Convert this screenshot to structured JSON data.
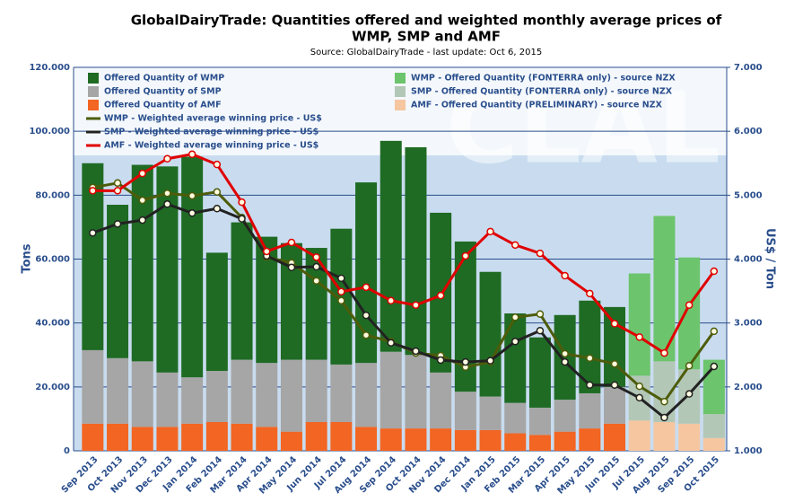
{
  "chart_data": {
    "type": "combo",
    "title": [
      "GlobalDairyTrade: Quantities offered and weighted monthly average prices of",
      "WMP, SMP and AMF"
    ],
    "subtitle": "Source: GlobalDairyTrade - last update: Oct 6, 2015",
    "watermark": "CLAL",
    "ylabel": "Tons",
    "y2label": "US$ / Ton",
    "categories": [
      "Sep 2013",
      "Oct 2013",
      "Nov 2013",
      "Dec 2013",
      "Jan 2014",
      "Feb 2014",
      "Mar 2014",
      "Apr 2014",
      "May 2014",
      "Jun 2014",
      "Jul 2014",
      "Aug 2014",
      "Sep 2014",
      "Oct 2014",
      "Nov 2014",
      "Dec 2014",
      "Jan 2015",
      "Feb 2015",
      "Mar 2015",
      "Apr 2015",
      "May 2015",
      "Jun 2015",
      "Jul 2015",
      "Aug 2015",
      "Sep 2015",
      "Oct 2015"
    ],
    "ylim": [
      0,
      120000
    ],
    "yticks": [
      0,
      {
        "value": 20000,
        "label": "20.000"
      },
      {
        "value": 40000,
        "label": "40.000"
      },
      {
        "value": 60000,
        "label": "60.000"
      },
      {
        "value": 80000,
        "label": "80.000"
      },
      {
        "value": 100000,
        "label": "100.000"
      },
      {
        "value": 120000,
        "label": "120.000"
      }
    ],
    "y2lim": [
      1,
      7
    ],
    "y2ticks": [
      {
        "value": 1,
        "label": "1.000"
      },
      {
        "value": 2,
        "label": "2.000"
      },
      {
        "value": 3,
        "label": "3.000"
      },
      {
        "value": 4,
        "label": "4.000"
      },
      {
        "value": 5,
        "label": "5.000"
      },
      {
        "value": 6,
        "label": "6.000"
      },
      {
        "value": 7,
        "label": "7.000"
      }
    ],
    "series": [
      {
        "name": "Offered Quantity of WMP",
        "type": "bar",
        "color": "#1f6b24",
        "values": [
          58500,
          48000,
          61500,
          64500,
          69000,
          37000,
          43000,
          39500,
          36500,
          35000,
          42500,
          56500,
          66000,
          65000,
          50000,
          47000,
          39000,
          28000,
          22000,
          26500,
          29000,
          25000,
          null,
          null,
          null,
          null
        ]
      },
      {
        "name": "Offered Quantity of SMP",
        "type": "bar",
        "color": "#a6a6a6",
        "values": [
          23000,
          20500,
          20500,
          17000,
          14500,
          16000,
          20000,
          20000,
          22500,
          19500,
          18000,
          20000,
          24000,
          23000,
          17500,
          12000,
          10500,
          9500,
          8500,
          10000,
          11000,
          11500,
          null,
          null,
          null,
          null
        ]
      },
      {
        "name": "Offered Quantity of AMF",
        "type": "bar",
        "color": "#f26522",
        "values": [
          8500,
          8500,
          7500,
          7500,
          8500,
          9000,
          8500,
          7500,
          6000,
          9000,
          9000,
          7500,
          7000,
          7000,
          7000,
          6500,
          6500,
          5500,
          5000,
          6000,
          7000,
          8500,
          null,
          null,
          null,
          null
        ]
      },
      {
        "name": "WMP - Offered Quantity (FONTERRA only) - source NZX",
        "type": "bar",
        "color": "#6cc46c",
        "values": [
          null,
          null,
          null,
          null,
          null,
          null,
          null,
          null,
          null,
          null,
          null,
          null,
          null,
          null,
          null,
          null,
          null,
          null,
          null,
          null,
          null,
          null,
          32000,
          45500,
          35000,
          17000
        ]
      },
      {
        "name": "SMP - Offered Quantity (FONTERRA only) - source NZX",
        "type": "bar",
        "color": "#b3c7b7",
        "values": [
          null,
          null,
          null,
          null,
          null,
          null,
          null,
          null,
          null,
          null,
          null,
          null,
          null,
          null,
          null,
          null,
          null,
          null,
          null,
          null,
          null,
          null,
          14000,
          19000,
          17000,
          7500
        ]
      },
      {
        "name": "AMF - Offered Quantity (PRELIMINARY) - source NZX",
        "type": "bar",
        "color": "#f5c6a0",
        "values": [
          null,
          null,
          null,
          null,
          null,
          null,
          null,
          null,
          null,
          null,
          null,
          null,
          null,
          null,
          null,
          null,
          null,
          null,
          null,
          null,
          null,
          null,
          9500,
          9000,
          8500,
          4000
        ]
      },
      {
        "name": "WMP - Weighted average winning price - US$",
        "type": "line",
        "axis": "y2",
        "color": "#4d5c0a",
        "values": [
          5.12,
          5.19,
          4.92,
          5.03,
          4.99,
          5.05,
          4.65,
          4.03,
          3.94,
          3.66,
          3.35,
          2.81,
          2.71,
          2.53,
          2.49,
          2.31,
          2.39,
          3.09,
          3.14,
          2.52,
          2.45,
          2.36,
          2.01,
          1.77,
          2.33,
          2.87
        ]
      },
      {
        "name": "SMP - Weighted average winning price - US$",
        "type": "line",
        "axis": "y2",
        "color": "#222222",
        "values": [
          4.41,
          4.55,
          4.61,
          4.86,
          4.72,
          4.79,
          4.63,
          4.05,
          3.87,
          3.88,
          3.7,
          3.12,
          2.69,
          2.56,
          2.42,
          2.39,
          2.41,
          2.71,
          2.88,
          2.39,
          2.03,
          2.03,
          1.83,
          1.52,
          1.89,
          2.32
        ]
      },
      {
        "name": "AMF - Weighted average winning price - US$",
        "type": "line",
        "axis": "y2",
        "color": "#e00000",
        "values": [
          5.07,
          5.07,
          5.34,
          5.57,
          5.64,
          5.48,
          4.89,
          4.12,
          4.26,
          4.03,
          3.49,
          3.56,
          3.35,
          3.28,
          3.43,
          4.05,
          4.43,
          4.22,
          4.09,
          3.74,
          3.46,
          2.99,
          2.78,
          2.53,
          3.28,
          3.81
        ]
      }
    ]
  }
}
